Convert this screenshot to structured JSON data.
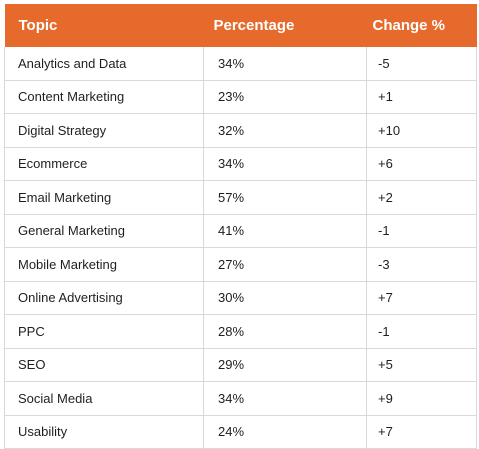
{
  "table": {
    "headers": {
      "topic": "Topic",
      "percentage": "Percentage",
      "change": "Change %"
    },
    "rows": [
      {
        "topic": "Analytics and Data",
        "percentage": "34%",
        "change": "-5"
      },
      {
        "topic": "Content Marketing",
        "percentage": "23%",
        "change": "+1"
      },
      {
        "topic": "Digital Strategy",
        "percentage": "32%",
        "change": "+10"
      },
      {
        "topic": "Ecommerce",
        "percentage": "34%",
        "change": "+6"
      },
      {
        "topic": "Email Marketing",
        "percentage": "57%",
        "change": "+2"
      },
      {
        "topic": "General Marketing",
        "percentage": "41%",
        "change": "-1"
      },
      {
        "topic": "Mobile Marketing",
        "percentage": "27%",
        "change": "-3"
      },
      {
        "topic": "Online Advertising",
        "percentage": "30%",
        "change": "+7"
      },
      {
        "topic": "PPC",
        "percentage": "28%",
        "change": "-1"
      },
      {
        "topic": "SEO",
        "percentage": "29%",
        "change": "+5"
      },
      {
        "topic": "Social Media",
        "percentage": "34%",
        "change": "+9"
      },
      {
        "topic": "Usability",
        "percentage": "24%",
        "change": "+7"
      }
    ]
  },
  "colors": {
    "header_background": "#e66a2c",
    "header_text": "#ffffff",
    "border": "#d9d9d9"
  }
}
